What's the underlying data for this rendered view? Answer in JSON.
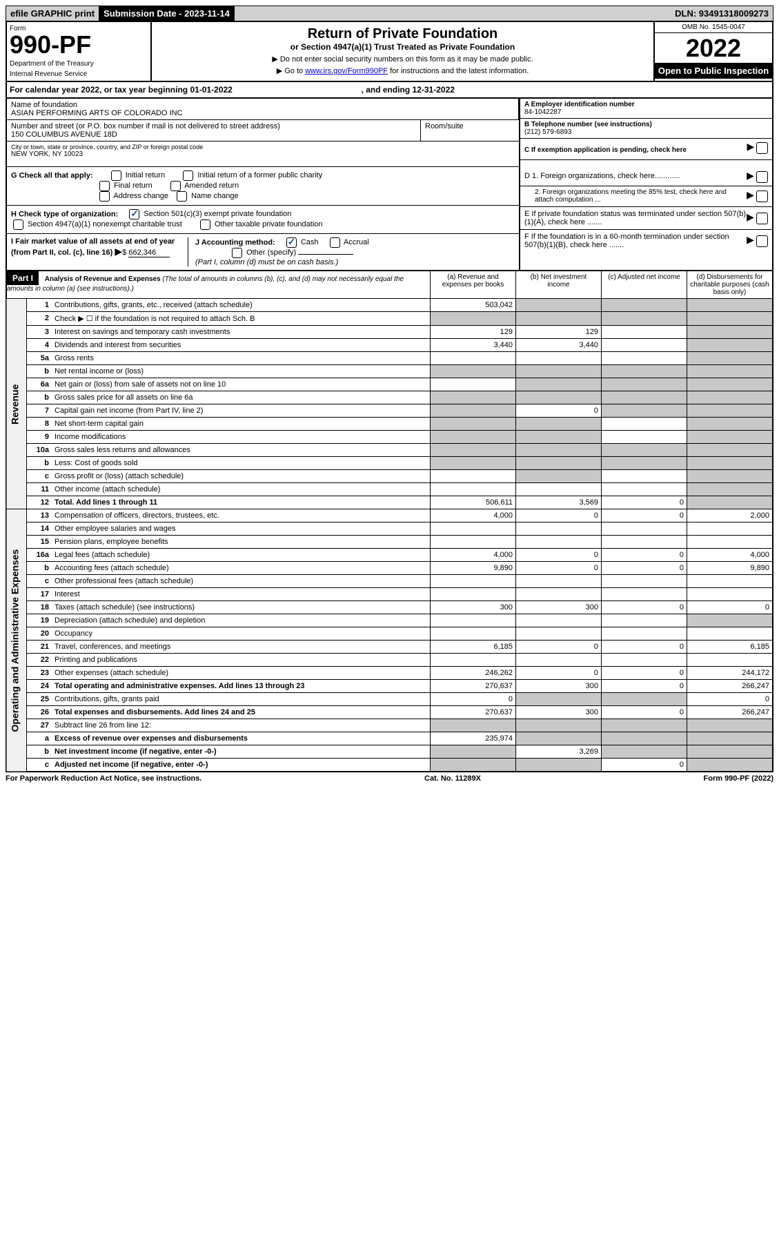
{
  "top_bar": {
    "efile": "efile GRAPHIC print",
    "submission_label": "Submission Date - 2023-11-14",
    "dln": "DLN: 93491318009273"
  },
  "header": {
    "form_label": "Form",
    "form_number": "990-PF",
    "dept1": "Department of the Treasury",
    "dept2": "Internal Revenue Service",
    "title": "Return of Private Foundation",
    "subtitle": "or Section 4947(a)(1) Trust Treated as Private Foundation",
    "inst1": "▶ Do not enter social security numbers on this form as it may be made public.",
    "inst2_pre": "▶ Go to ",
    "inst2_link": "www.irs.gov/Form990PF",
    "inst2_post": " for instructions and the latest information.",
    "omb": "OMB No. 1545-0047",
    "year": "2022",
    "open": "Open to Public Inspection"
  },
  "calendar": {
    "text_pre": "For calendar year 2022, or tax year beginning ",
    "begin": "01-01-2022",
    "text_mid": " , and ending ",
    "end": "12-31-2022"
  },
  "entity": {
    "name_label": "Name of foundation",
    "name": "ASIAN PERFORMING ARTS OF COLORADO INC",
    "addr_label": "Number and street (or P.O. box number if mail is not delivered to street address)",
    "addr": "150 COLUMBUS AVENUE 18D",
    "room_label": "Room/suite",
    "city_label": "City or town, state or province, country, and ZIP or foreign postal code",
    "city": "NEW YORK, NY  10023",
    "ein_label": "A Employer identification number",
    "ein": "84-1042287",
    "phone_label": "B Telephone number (see instructions)",
    "phone": "(212) 579-6893",
    "c_label": "C If exemption application is pending, check here",
    "d1": "D 1. Foreign organizations, check here............",
    "d2": "2. Foreign organizations meeting the 85% test, check here and attach computation ...",
    "e": "E  If private foundation status was terminated under section 507(b)(1)(A), check here .......",
    "f": "F  If the foundation is in a 60-month termination under section 507(b)(1)(B), check here ......."
  },
  "g": {
    "label": "G Check all that apply:",
    "opts": [
      "Initial return",
      "Initial return of a former public charity",
      "Final return",
      "Amended return",
      "Address change",
      "Name change"
    ]
  },
  "h": {
    "label": "H Check type of organization:",
    "opt1": "Section 501(c)(3) exempt private foundation",
    "opt2": "Section 4947(a)(1) nonexempt charitable trust",
    "opt3": "Other taxable private foundation"
  },
  "i": {
    "label": "I Fair market value of all assets at end of year (from Part II, col. (c), line 16)",
    "value": "662,346"
  },
  "j": {
    "label": "J Accounting method:",
    "cash": "Cash",
    "accrual": "Accrual",
    "other": "Other (specify)",
    "note": "(Part I, column (d) must be on cash basis.)"
  },
  "part1": {
    "label": "Part I",
    "title": "Analysis of Revenue and Expenses",
    "title_note": "(The total of amounts in columns (b), (c), and (d) may not necessarily equal the amounts in column (a) (see instructions).)",
    "col_a": "(a)   Revenue and expenses per books",
    "col_b": "(b)   Net investment income",
    "col_c": "(c)   Adjusted net income",
    "col_d": "(d)   Disbursements for charitable purposes (cash basis only)"
  },
  "section_revenue": "Revenue",
  "section_expenses": "Operating and Administrative Expenses",
  "rows": [
    {
      "n": "1",
      "desc": "Contributions, gifts, grants, etc., received (attach schedule)",
      "a": "503,042",
      "b": "",
      "c": "",
      "d": "",
      "shade": [
        "b",
        "c",
        "d"
      ]
    },
    {
      "n": "2",
      "desc": "Check ▶ ☐ if the foundation is not required to attach Sch. B",
      "a": "",
      "b": "",
      "c": "",
      "d": "",
      "shade": [
        "a",
        "b",
        "c",
        "d"
      ]
    },
    {
      "n": "3",
      "desc": "Interest on savings and temporary cash investments",
      "a": "129",
      "b": "129",
      "c": "",
      "d": "",
      "shade": [
        "d"
      ]
    },
    {
      "n": "4",
      "desc": "Dividends and interest from securities",
      "a": "3,440",
      "b": "3,440",
      "c": "",
      "d": "",
      "shade": [
        "d"
      ]
    },
    {
      "n": "5a",
      "desc": "Gross rents",
      "a": "",
      "b": "",
      "c": "",
      "d": "",
      "shade": [
        "d"
      ]
    },
    {
      "n": "b",
      "desc": "Net rental income or (loss)",
      "a": "",
      "b": "",
      "c": "",
      "d": "",
      "shade": [
        "a",
        "b",
        "c",
        "d"
      ]
    },
    {
      "n": "6a",
      "desc": "Net gain or (loss) from sale of assets not on line 10",
      "a": "",
      "b": "",
      "c": "",
      "d": "",
      "shade": [
        "b",
        "c",
        "d"
      ]
    },
    {
      "n": "b",
      "desc": "Gross sales price for all assets on line 6a",
      "a": "",
      "b": "",
      "c": "",
      "d": "",
      "shade": [
        "a",
        "b",
        "c",
        "d"
      ]
    },
    {
      "n": "7",
      "desc": "Capital gain net income (from Part IV, line 2)",
      "a": "",
      "b": "0",
      "c": "",
      "d": "",
      "shade": [
        "a",
        "c",
        "d"
      ]
    },
    {
      "n": "8",
      "desc": "Net short-term capital gain",
      "a": "",
      "b": "",
      "c": "",
      "d": "",
      "shade": [
        "a",
        "b",
        "d"
      ]
    },
    {
      "n": "9",
      "desc": "Income modifications",
      "a": "",
      "b": "",
      "c": "",
      "d": "",
      "shade": [
        "a",
        "b",
        "d"
      ]
    },
    {
      "n": "10a",
      "desc": "Gross sales less returns and allowances",
      "a": "",
      "b": "",
      "c": "",
      "d": "",
      "shade": [
        "a",
        "b",
        "c",
        "d"
      ]
    },
    {
      "n": "b",
      "desc": "Less: Cost of goods sold",
      "a": "",
      "b": "",
      "c": "",
      "d": "",
      "shade": [
        "a",
        "b",
        "c",
        "d"
      ]
    },
    {
      "n": "c",
      "desc": "Gross profit or (loss) (attach schedule)",
      "a": "",
      "b": "",
      "c": "",
      "d": "",
      "shade": [
        "b",
        "d"
      ]
    },
    {
      "n": "11",
      "desc": "Other income (attach schedule)",
      "a": "",
      "b": "",
      "c": "",
      "d": "",
      "shade": [
        "d"
      ]
    },
    {
      "n": "12",
      "desc": "Total. Add lines 1 through 11",
      "a": "506,611",
      "b": "3,569",
      "c": "0",
      "d": "",
      "shade": [
        "d"
      ],
      "bold": true
    }
  ],
  "exp_rows": [
    {
      "n": "13",
      "desc": "Compensation of officers, directors, trustees, etc.",
      "a": "4,000",
      "b": "0",
      "c": "0",
      "d": "2,000"
    },
    {
      "n": "14",
      "desc": "Other employee salaries and wages",
      "a": "",
      "b": "",
      "c": "",
      "d": ""
    },
    {
      "n": "15",
      "desc": "Pension plans, employee benefits",
      "a": "",
      "b": "",
      "c": "",
      "d": ""
    },
    {
      "n": "16a",
      "desc": "Legal fees (attach schedule)",
      "a": "4,000",
      "b": "0",
      "c": "0",
      "d": "4,000"
    },
    {
      "n": "b",
      "desc": "Accounting fees (attach schedule)",
      "a": "9,890",
      "b": "0",
      "c": "0",
      "d": "9,890"
    },
    {
      "n": "c",
      "desc": "Other professional fees (attach schedule)",
      "a": "",
      "b": "",
      "c": "",
      "d": ""
    },
    {
      "n": "17",
      "desc": "Interest",
      "a": "",
      "b": "",
      "c": "",
      "d": ""
    },
    {
      "n": "18",
      "desc": "Taxes (attach schedule) (see instructions)",
      "a": "300",
      "b": "300",
      "c": "0",
      "d": "0"
    },
    {
      "n": "19",
      "desc": "Depreciation (attach schedule) and depletion",
      "a": "",
      "b": "",
      "c": "",
      "d": "",
      "shade": [
        "d"
      ]
    },
    {
      "n": "20",
      "desc": "Occupancy",
      "a": "",
      "b": "",
      "c": "",
      "d": ""
    },
    {
      "n": "21",
      "desc": "Travel, conferences, and meetings",
      "a": "6,185",
      "b": "0",
      "c": "0",
      "d": "6,185"
    },
    {
      "n": "22",
      "desc": "Printing and publications",
      "a": "",
      "b": "",
      "c": "",
      "d": ""
    },
    {
      "n": "23",
      "desc": "Other expenses (attach schedule)",
      "a": "246,262",
      "b": "0",
      "c": "0",
      "d": "244,172"
    },
    {
      "n": "24",
      "desc": "Total operating and administrative expenses. Add lines 13 through 23",
      "a": "270,637",
      "b": "300",
      "c": "0",
      "d": "266,247",
      "bold": true
    },
    {
      "n": "25",
      "desc": "Contributions, gifts, grants paid",
      "a": "0",
      "b": "",
      "c": "",
      "d": "0",
      "shade": [
        "b",
        "c"
      ]
    },
    {
      "n": "26",
      "desc": "Total expenses and disbursements. Add lines 24 and 25",
      "a": "270,637",
      "b": "300",
      "c": "0",
      "d": "266,247",
      "bold": true
    },
    {
      "n": "27",
      "desc": "Subtract line 26 from line 12:",
      "a": "",
      "b": "",
      "c": "",
      "d": "",
      "shade": [
        "a",
        "b",
        "c",
        "d"
      ]
    },
    {
      "n": "a",
      "desc": "Excess of revenue over expenses and disbursements",
      "a": "235,974",
      "b": "",
      "c": "",
      "d": "",
      "shade": [
        "b",
        "c",
        "d"
      ],
      "bold": true
    },
    {
      "n": "b",
      "desc": "Net investment income (if negative, enter -0-)",
      "a": "",
      "b": "3,269",
      "c": "",
      "d": "",
      "shade": [
        "a",
        "c",
        "d"
      ],
      "bold": true
    },
    {
      "n": "c",
      "desc": "Adjusted net income (if negative, enter -0-)",
      "a": "",
      "b": "",
      "c": "0",
      "d": "",
      "shade": [
        "a",
        "b",
        "d"
      ],
      "bold": true
    }
  ],
  "footer": {
    "left": "For Paperwork Reduction Act Notice, see instructions.",
    "mid": "Cat. No. 11289X",
    "right": "Form 990-PF (2022)"
  }
}
